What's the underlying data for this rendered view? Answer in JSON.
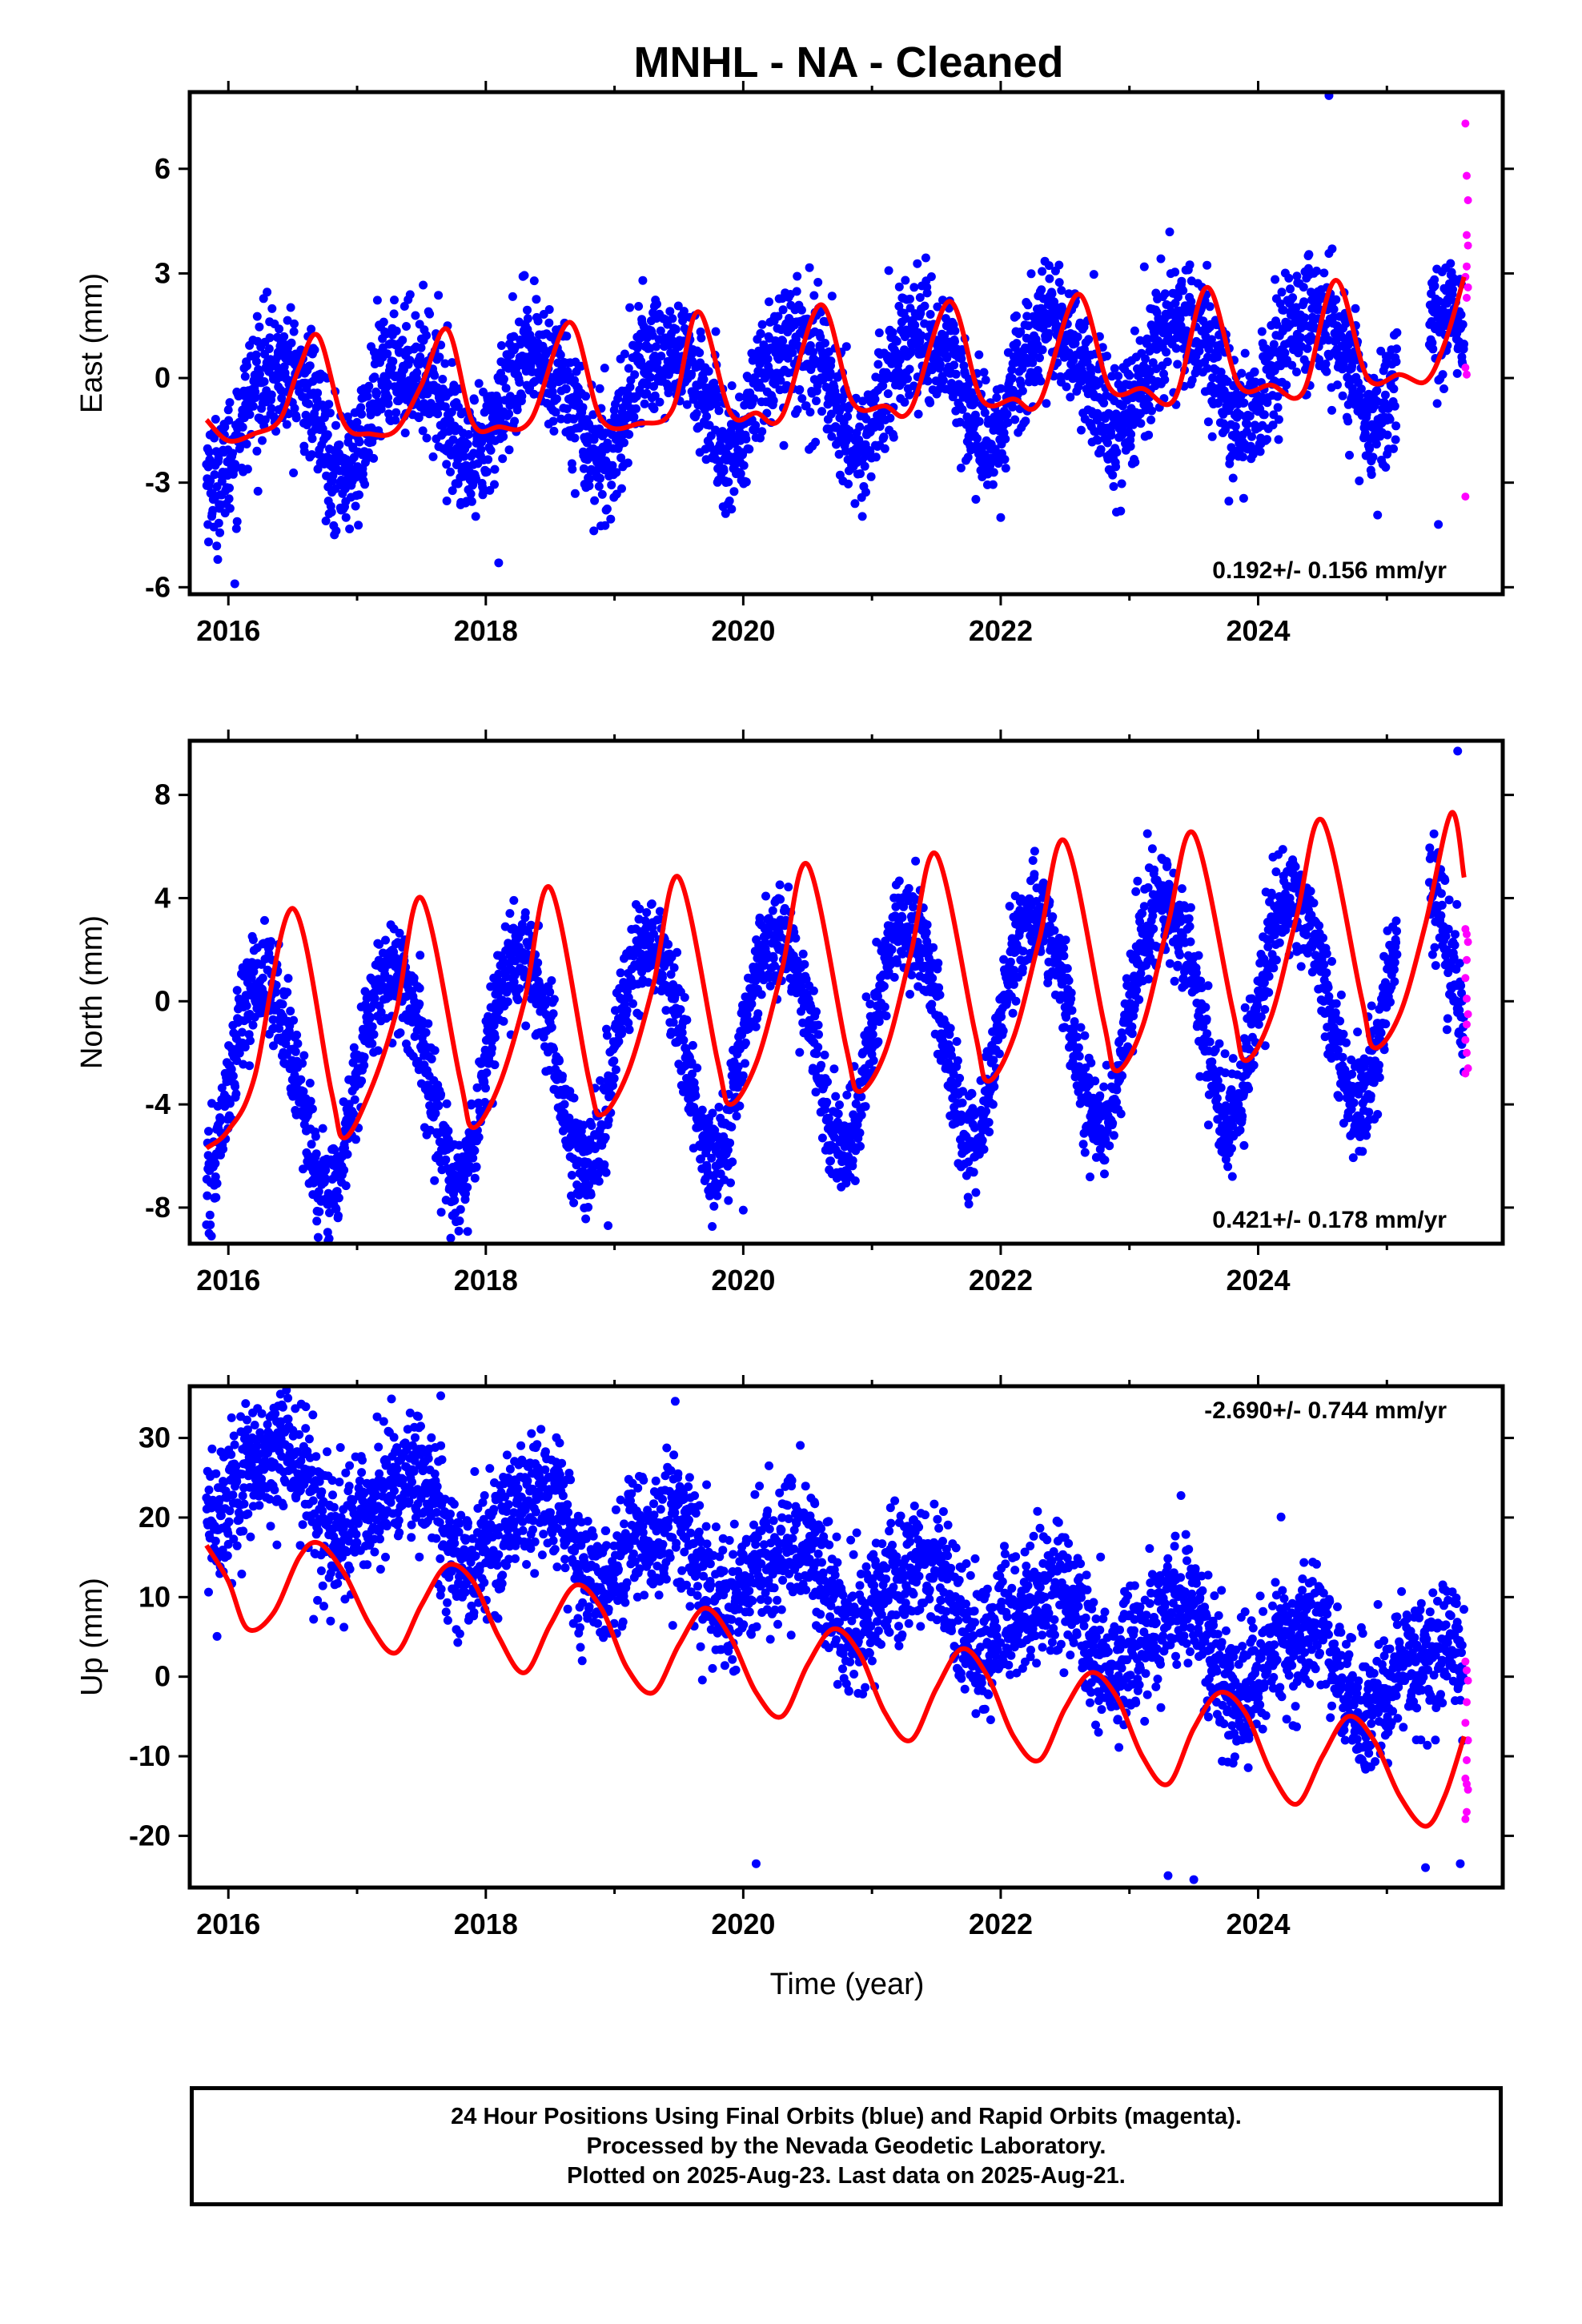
{
  "title": "MNHL  - NA - Cleaned",
  "colors": {
    "final_orbits": "#0000ff",
    "rapid_orbits": "#ff00ff",
    "fit": "#ff0000",
    "frame": "#000000"
  },
  "x_axis": {
    "label": "Time (year)",
    "range": [
      2015.7,
      2025.9
    ],
    "major_ticks": [
      "2016",
      "2018",
      "2020",
      "2022",
      "2024"
    ],
    "minor_ticks": [
      2017,
      2019,
      2021,
      2023,
      2025
    ]
  },
  "chart_data": [
    {
      "type": "scatter",
      "panel": "east",
      "ylabel": "East (mm)",
      "ylim": [
        -6.2,
        8.2
      ],
      "yticks": [
        "6",
        "3",
        "0",
        "-3",
        "-6"
      ],
      "ytick_values": [
        6,
        3,
        0,
        -3,
        -6
      ],
      "rate_label": "0.192+/- 0.156 mm/yr",
      "rate_position": "bottom-right",
      "seasonal": {
        "start_year": 2015.83,
        "end_year": 2025.6,
        "offset": -0.2,
        "trend": 0.192,
        "amp_sin": 0.9,
        "amp_cos": -1.2,
        "amp2_sin": 0.3,
        "amp2_cos": -0.15,
        "noise": 0.9
      },
      "fit_curve": {
        "x": [
          2015.83,
          2016.0,
          2016.2,
          2016.4,
          2016.55,
          2016.7,
          2016.9,
          2017.1,
          2017.3,
          2017.5,
          2017.7,
          2017.9,
          2018.1,
          2018.35,
          2018.65,
          2018.9,
          2019.2,
          2019.45,
          2019.65,
          2019.9,
          2020.1,
          2020.3,
          2020.6,
          2020.85,
          2021.1,
          2021.3,
          2021.6,
          2021.85,
          2022.1,
          2022.3,
          2022.6,
          2022.85,
          2023.1,
          2023.35,
          2023.6,
          2023.85,
          2024.1,
          2024.35,
          2024.6,
          2024.85,
          2025.1,
          2025.3,
          2025.45,
          2025.6
        ],
        "y": [
          -1.2,
          -1.8,
          -1.6,
          -1.2,
          0.3,
          1.2,
          -1.3,
          -1.6,
          -1.5,
          -0.2,
          1.4,
          -1.3,
          -1.4,
          -1.2,
          1.6,
          -1.2,
          -1.3,
          -0.9,
          1.9,
          -1.0,
          -1.0,
          -1.1,
          2.1,
          -0.7,
          -0.8,
          -0.9,
          2.2,
          -0.6,
          -0.6,
          -0.7,
          2.4,
          -0.3,
          -0.3,
          -0.6,
          2.6,
          -0.2,
          -0.2,
          -0.4,
          2.8,
          0.0,
          0.1,
          -0.1,
          1.0,
          2.9
        ]
      },
      "rapid_points": {
        "x": [
          2025.61,
          2025.62,
          2025.63,
          2025.62,
          2025.63,
          2025.62,
          2025.61,
          2025.63,
          2025.62,
          2025.61,
          2025.62,
          2025.61
        ],
        "y": [
          7.3,
          5.8,
          5.1,
          4.1,
          3.8,
          3.2,
          2.9,
          2.6,
          2.3,
          0.3,
          0.1,
          -3.4
        ]
      },
      "outliers": {
        "x": [
          2024.55,
          2025.4,
          2016.05,
          2018.1,
          2022.0
        ],
        "y": [
          8.1,
          -4.2,
          -5.9,
          -5.3,
          -4.0
        ]
      }
    },
    {
      "type": "scatter",
      "panel": "north",
      "ylabel": "North (mm)",
      "ylim": [
        -9.4,
        10.1
      ],
      "yticks": [
        "8",
        "4",
        "0",
        "-4",
        "-8"
      ],
      "ytick_values": [
        8,
        4,
        0,
        -4,
        -8
      ],
      "rate_label": "0.421+/- 0.178 mm/yr",
      "rate_position": "bottom-right",
      "seasonal": {
        "start_year": 2015.83,
        "end_year": 2025.6,
        "offset": -1.2,
        "trend": 0.421,
        "amp_sin": 4.2,
        "amp_cos": -0.5,
        "amp2_sin": 0.2,
        "amp2_cos": 0.3,
        "noise": 1.0
      },
      "fit_curve": {
        "x": [
          2015.83,
          2016.0,
          2016.2,
          2016.5,
          2016.8,
          2016.9,
          2017.1,
          2017.3,
          2017.5,
          2017.8,
          2017.9,
          2018.1,
          2018.3,
          2018.5,
          2018.8,
          2018.9,
          2019.1,
          2019.3,
          2019.5,
          2019.8,
          2019.9,
          2020.1,
          2020.3,
          2020.5,
          2020.8,
          2020.9,
          2021.1,
          2021.3,
          2021.5,
          2021.8,
          2021.9,
          2022.1,
          2022.3,
          2022.5,
          2022.8,
          2022.9,
          2023.1,
          2023.3,
          2023.5,
          2023.8,
          2023.9,
          2024.1,
          2024.3,
          2024.5,
          2024.8,
          2024.9,
          2025.1,
          2025.3,
          2025.5,
          2025.6
        ],
        "y": [
          -5.7,
          -5.0,
          -3.0,
          3.6,
          -3.5,
          -5.3,
          -3.5,
          -0.5,
          4.0,
          -3.0,
          -4.9,
          -3.3,
          0.0,
          4.4,
          -3.0,
          -4.4,
          -2.8,
          0.6,
          4.8,
          -2.3,
          -4.0,
          -2.4,
          1.2,
          5.3,
          -1.8,
          -3.5,
          -2.0,
          1.8,
          5.7,
          -1.2,
          -3.1,
          -1.4,
          2.4,
          6.2,
          -0.8,
          -2.7,
          -1.0,
          3.0,
          6.5,
          -0.3,
          -2.3,
          -0.6,
          3.3,
          7.0,
          0.2,
          -1.8,
          -0.5,
          3.0,
          7.3,
          4.8
        ]
      },
      "rapid_points": {
        "x": [
          2025.61,
          2025.62,
          2025.63,
          2025.62,
          2025.61,
          2025.62,
          2025.63,
          2025.62,
          2025.61,
          2025.62,
          2025.63,
          2025.61
        ],
        "y": [
          2.8,
          2.6,
          2.3,
          1.6,
          0.9,
          0.1,
          -0.5,
          -0.9,
          -1.5,
          -2.0,
          -2.6,
          -2.8
        ]
      },
      "outliers": {
        "x": [
          2015.85,
          2018.95,
          2020.0,
          2025.55
        ],
        "y": [
          -9.0,
          -8.7,
          -8.1,
          9.7
        ]
      }
    },
    {
      "type": "scatter",
      "panel": "up",
      "ylabel": "Up (mm)",
      "ylim": [
        -26.5,
        36.5
      ],
      "yticks": [
        "30",
        "20",
        "10",
        "0",
        "-10",
        "-20"
      ],
      "ytick_values": [
        30,
        20,
        10,
        0,
        -10,
        -20
      ],
      "rate_label": "-2.690+/- 0.744 mm/yr",
      "rate_position": "top-right",
      "seasonal": {
        "start_year": 2015.83,
        "end_year": 2025.6,
        "offset": 11.8,
        "trend": -2.69,
        "amp_sin": 3.5,
        "amp_cos": -3.5,
        "amp2_sin": 0.5,
        "amp2_cos": 1.2,
        "noise": 4.2
      },
      "fit_curve": {
        "x": [
          2015.83,
          2016.0,
          2016.15,
          2016.35,
          2016.55,
          2016.7,
          2016.9,
          2017.1,
          2017.3,
          2017.5,
          2017.7,
          2017.9,
          2018.1,
          2018.3,
          2018.5,
          2018.7,
          2018.9,
          2019.1,
          2019.3,
          2019.5,
          2019.7,
          2019.9,
          2020.1,
          2020.3,
          2020.5,
          2020.7,
          2020.9,
          2021.1,
          2021.3,
          2021.5,
          2021.7,
          2021.9,
          2022.1,
          2022.3,
          2022.5,
          2022.7,
          2022.9,
          2023.1,
          2023.3,
          2023.5,
          2023.7,
          2023.9,
          2024.1,
          2024.3,
          2024.5,
          2024.7,
          2024.9,
          2025.1,
          2025.3,
          2025.45,
          2025.6
        ],
        "y": [
          16.5,
          12.0,
          6.0,
          8.0,
          15.0,
          16.8,
          13.0,
          6.5,
          3.0,
          9.0,
          14.0,
          12.0,
          5.0,
          0.5,
          6.5,
          11.5,
          8.5,
          1.0,
          -2.0,
          4.0,
          8.6,
          5.0,
          -2.0,
          -5.0,
          1.5,
          6.0,
          3.0,
          -4.5,
          -8.0,
          -1.5,
          3.5,
          0.0,
          -7.5,
          -10.5,
          -4.0,
          0.5,
          -2.5,
          -10.0,
          -13.5,
          -6.5,
          -2.0,
          -4.5,
          -12.0,
          -16.0,
          -10.0,
          -5.0,
          -8.0,
          -15.0,
          -18.8,
          -15.0,
          -7.5
        ]
      },
      "rapid_points": {
        "x": [
          2025.61,
          2025.62,
          2025.63,
          2025.62,
          2025.61,
          2025.63,
          2025.62,
          2025.61,
          2025.62,
          2025.63,
          2025.62,
          2025.61
        ],
        "y": [
          1.9,
          0.8,
          -0.5,
          -3.2,
          -5.8,
          -8.0,
          -10.5,
          -12.8,
          -13.5,
          -14.2,
          -17.0,
          -17.9
        ]
      },
      "outliers": {
        "x": [
          2017.65,
          2016.6,
          2020.1,
          2023.3,
          2023.5,
          2025.3,
          2025.57
        ],
        "y": [
          35.3,
          31.2,
          -23.5,
          -25.0,
          -25.5,
          -24.0,
          -23.5
        ]
      }
    }
  ],
  "caption": {
    "line1": "24 Hour Positions Using Final Orbits (blue) and Rapid Orbits (magenta).",
    "line2": "Processed by the Nevada Geodetic Laboratory.",
    "line3": "Plotted on 2025-Aug-23. Last data on 2025-Aug-21."
  }
}
